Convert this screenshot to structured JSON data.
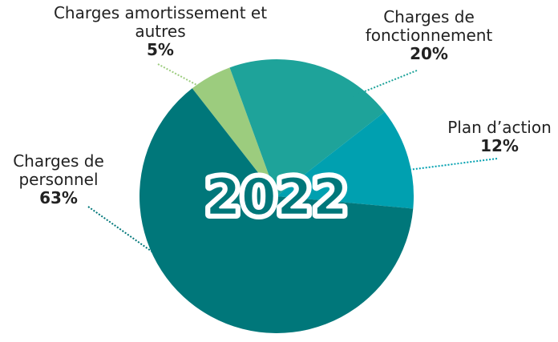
{
  "chart_data": {
    "type": "pie",
    "title": "2022",
    "categories": [
      "Charges amortissement et autres",
      "Charges de fonctionnement",
      "Plan d’action",
      "Charges de personnel"
    ],
    "values": [
      5,
      20,
      12,
      63
    ],
    "value_labels": [
      "5%",
      "20%",
      "12%",
      "63%"
    ],
    "colors": [
      "#9ccc7e",
      "#1ea39a",
      "#00a0b0",
      "#00777a"
    ]
  }
}
